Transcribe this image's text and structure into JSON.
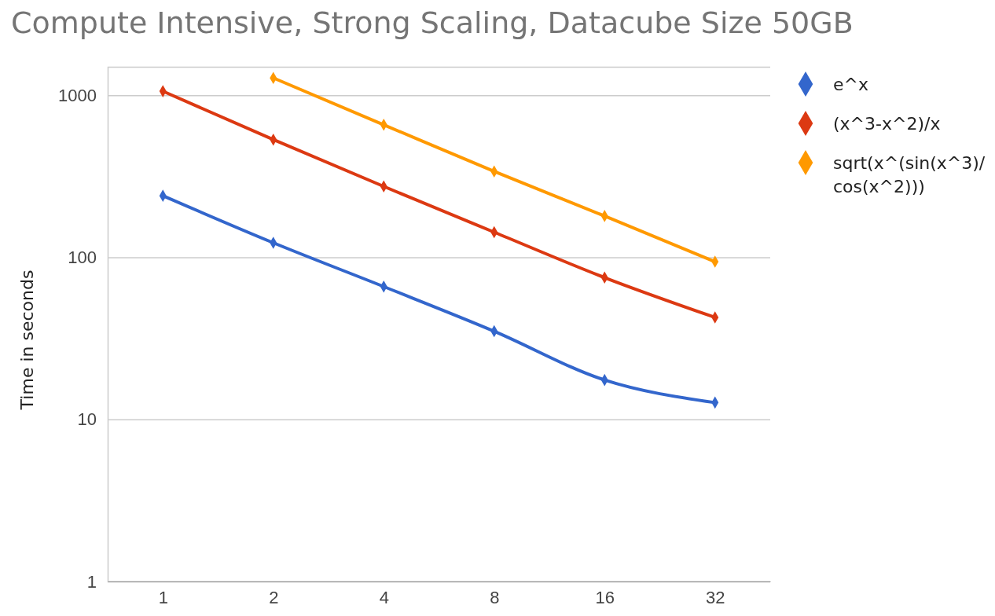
{
  "chart_data": {
    "type": "line",
    "title": "Compute Intensive, Strong Scaling, Datacube Size 50GB",
    "ylabel": "Time in seconds",
    "categories": [
      "1",
      "2",
      "4",
      "8",
      "16",
      "32"
    ],
    "series": [
      {
        "name": "e^x",
        "color": "#3366cc",
        "values": [
          240,
          123,
          66,
          35,
          17.5,
          12.7
        ]
      },
      {
        "name": "(x^3-x^2)/x",
        "color": "#dc3912",
        "values": [
          1060,
          533,
          274,
          143,
          75,
          42.6
        ]
      },
      {
        "name": "sqrt(x^(sin(x^3)/cos(x^2)))",
        "color": "#ff9900",
        "values": [
          null,
          1280,
          658,
          339,
          180,
          94
        ]
      }
    ],
    "log": true,
    "ylim": [
      1,
      1500
    ],
    "yticks": [
      1,
      10,
      100,
      1000
    ],
    "grid": "y",
    "legend": "right",
    "marker": "diamond",
    "line_style": "solid"
  }
}
